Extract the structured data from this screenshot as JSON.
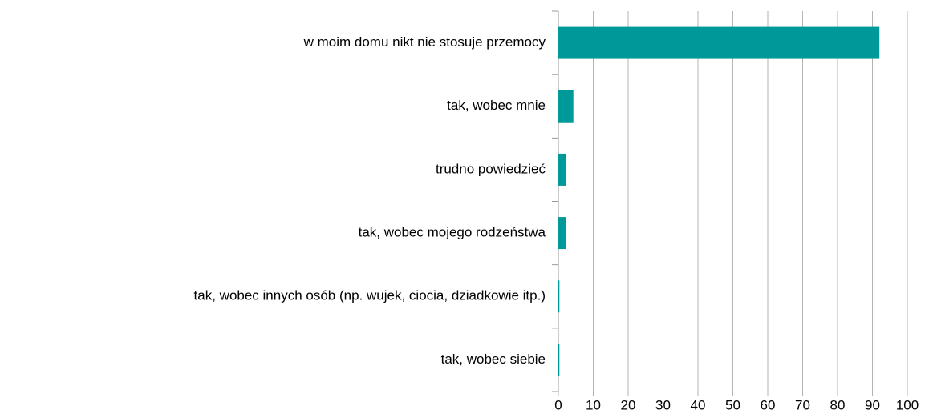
{
  "chart_data": {
    "type": "hbar",
    "categories": [
      "w moim domu nikt nie stosuje przemocy",
      "tak, wobec mnie",
      "trudno powiedzieć",
      "tak, wobec mojego rodzeństwa",
      "tak, wobec innych osób (np. wujek, ciocia, dziadkowie itp.)",
      "tak, wobec siebie"
    ],
    "values": [
      92,
      4.3,
      2.2,
      2.2,
      0.3,
      0.3
    ],
    "color": "#009999",
    "xlim": [
      0,
      100
    ],
    "xticks": [
      0,
      10,
      20,
      30,
      40,
      50,
      60,
      70,
      80,
      90,
      100
    ],
    "grid": true
  }
}
